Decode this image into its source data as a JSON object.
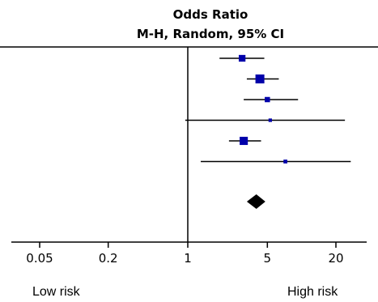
{
  "chart_data": {
    "type": "forest",
    "title": "Odds Ratio",
    "subtitle": "M-H, Random, 95% CI",
    "x_scale": "log",
    "xlim": [
      0.02,
      30
    ],
    "ticks": [
      {
        "value": 0.05,
        "label": "0.05"
      },
      {
        "value": 0.2,
        "label": "0.2"
      },
      {
        "value": 1,
        "label": "1"
      },
      {
        "value": 5,
        "label": "5"
      },
      {
        "value": 20,
        "label": "20"
      }
    ],
    "reference_line": 1,
    "studies": [
      {
        "or": 3.0,
        "ci_low": 1.9,
        "ci_high": 4.7,
        "weight": 0.7
      },
      {
        "or": 4.3,
        "ci_low": 3.3,
        "ci_high": 6.3,
        "weight": 1.0
      },
      {
        "or": 5.0,
        "ci_low": 3.1,
        "ci_high": 9.3,
        "weight": 0.5
      },
      {
        "or": 5.3,
        "ci_low": 0.95,
        "ci_high": 24.0,
        "weight": 0.25
      },
      {
        "or": 3.1,
        "ci_low": 2.3,
        "ci_high": 4.4,
        "weight": 0.9
      },
      {
        "or": 7.2,
        "ci_low": 1.3,
        "ci_high": 27.0,
        "weight": 0.3
      }
    ],
    "pooled": {
      "or": 4.0,
      "ci_low": 3.3,
      "ci_high": 4.8
    },
    "left_label": "Low risk",
    "right_label": "High risk",
    "colors": {
      "study": "#0000aa",
      "pooled": "#000000",
      "lines": "#000000"
    }
  }
}
